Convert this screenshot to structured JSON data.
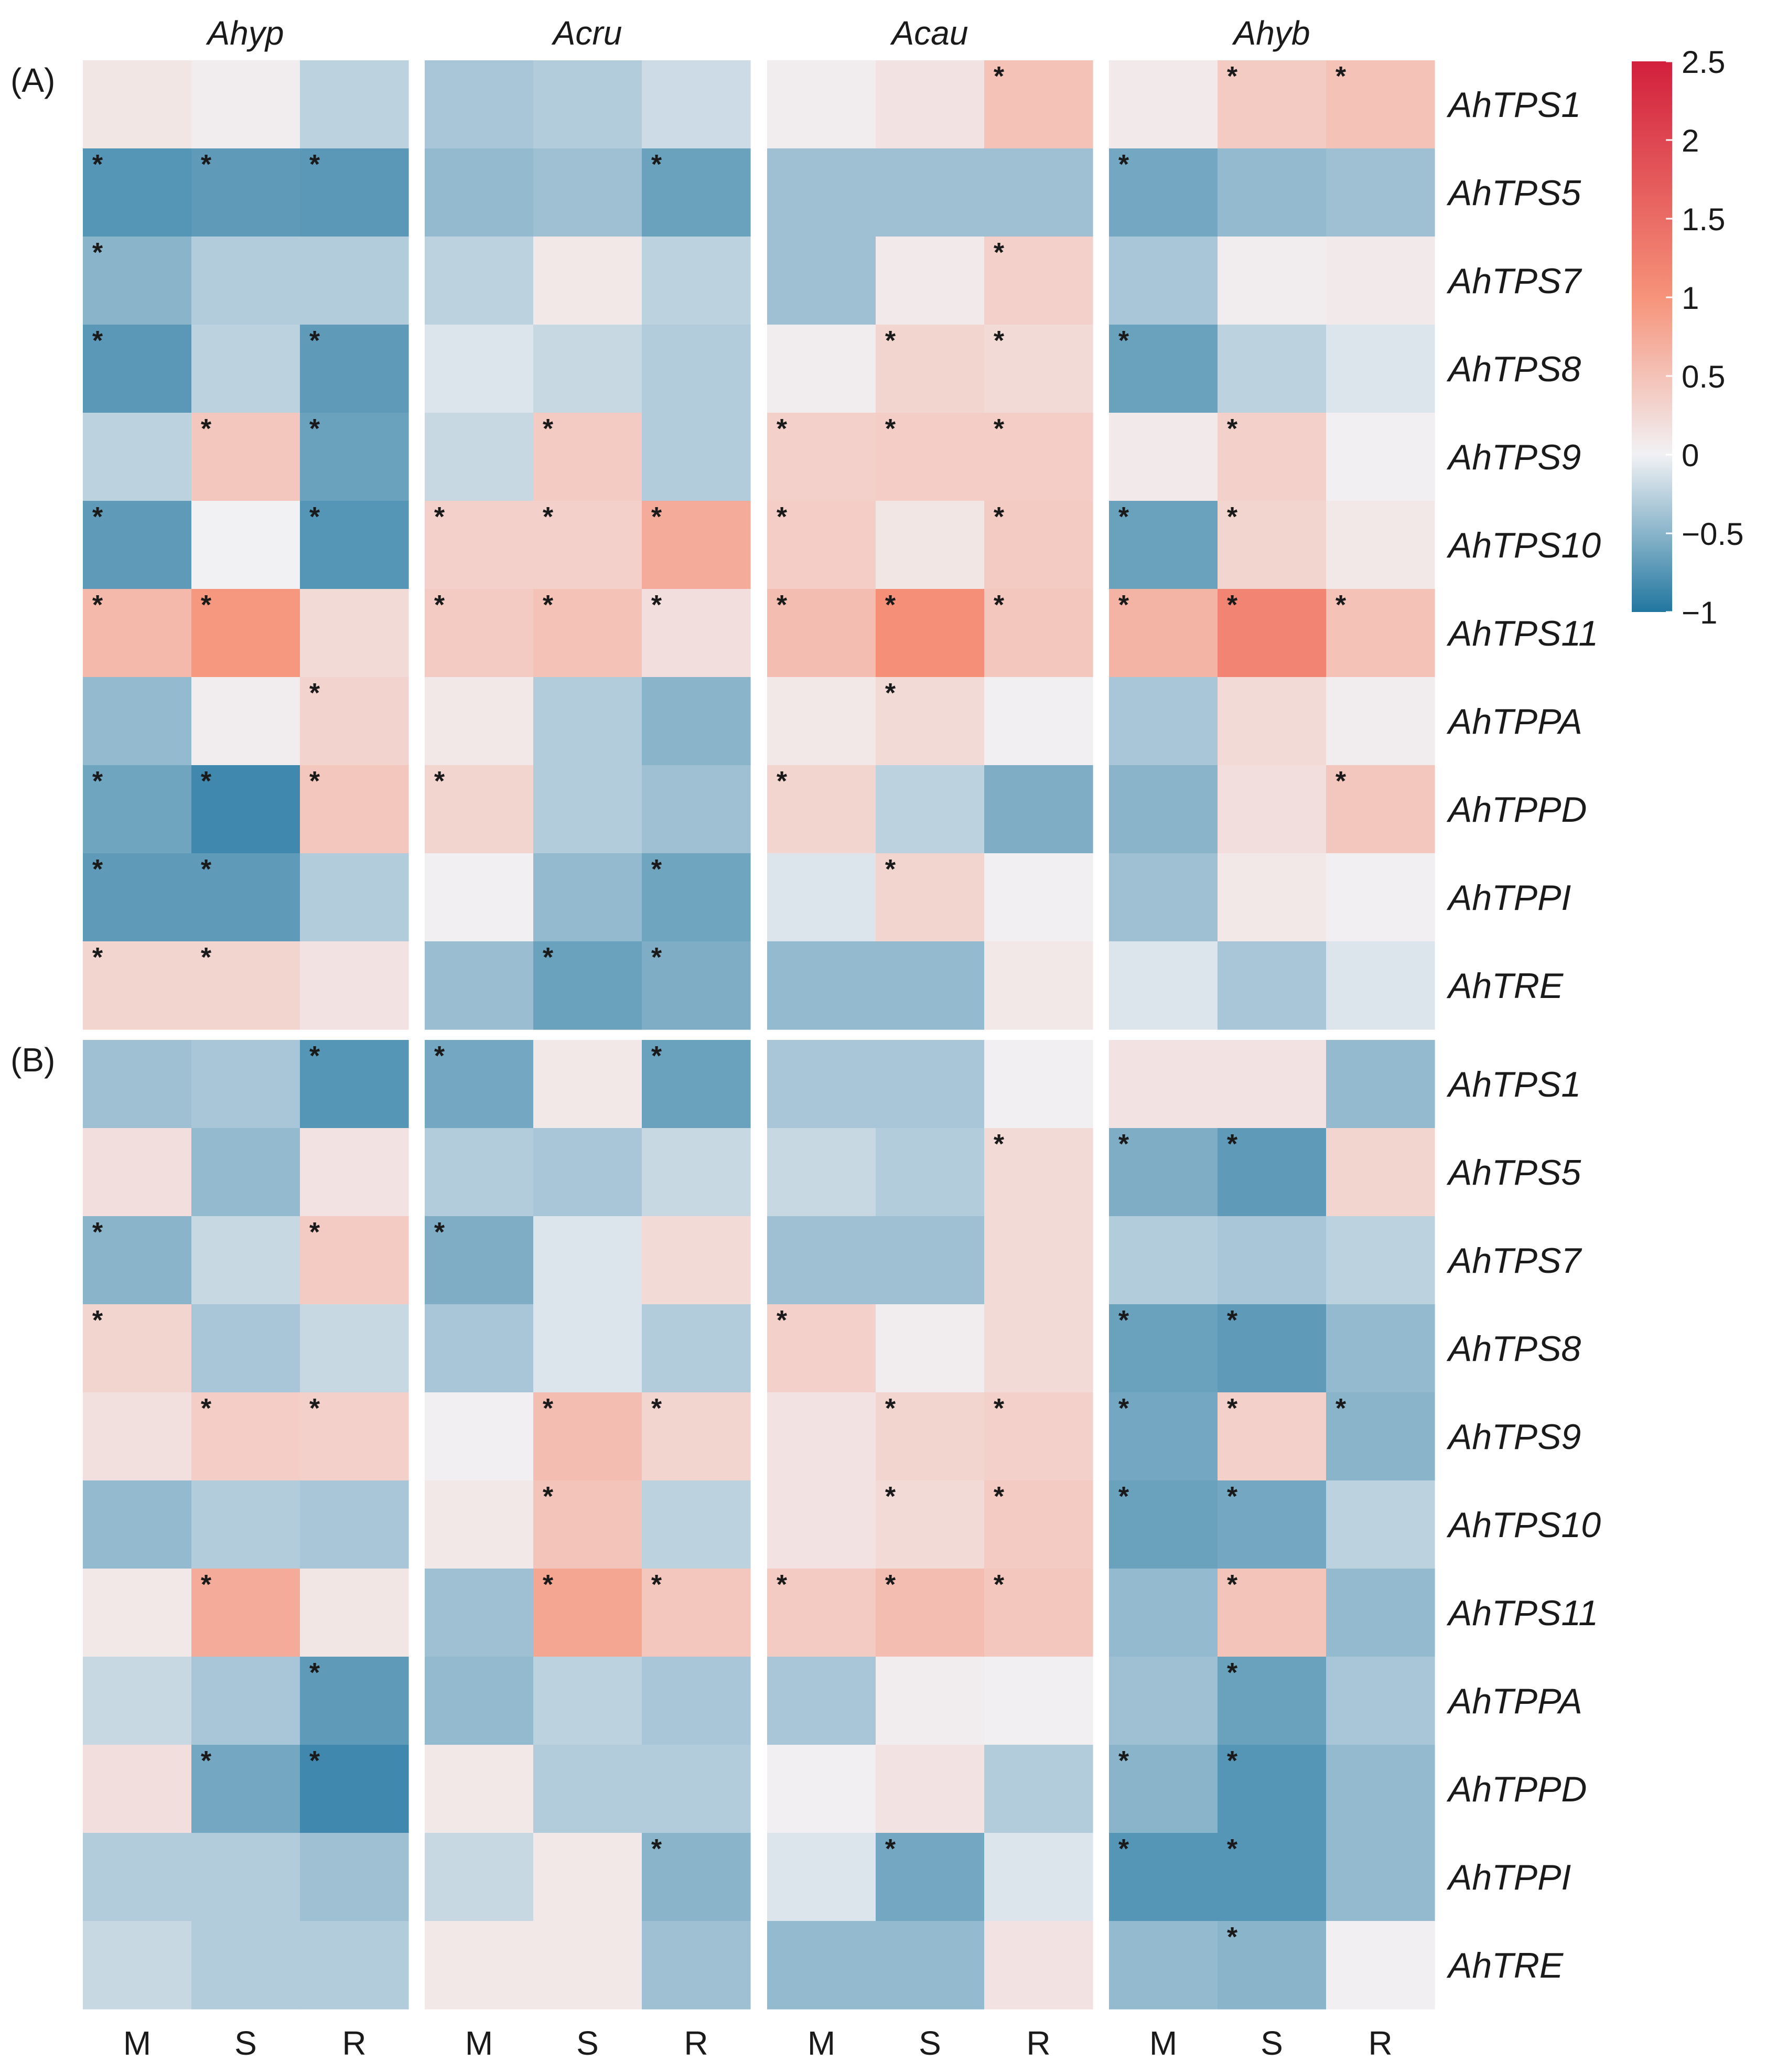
{
  "chart_data": {
    "type": "heatmap",
    "species": [
      "Ahyp",
      "Acru",
      "Acau",
      "Ahyb"
    ],
    "tissues": [
      "M",
      "S",
      "R"
    ],
    "genes": [
      "AhTPS1",
      "AhTPS5",
      "AhTPS7",
      "AhTPS8",
      "AhTPS9",
      "AhTPS10",
      "AhTPS11",
      "AhTPPA",
      "AhTPPD",
      "AhTPPI",
      "AhTRE"
    ],
    "colorbar": {
      "min": -1,
      "max": 2.5,
      "ticks": [
        "2.5",
        "2",
        "1.5",
        "1",
        "0.5",
        "0",
        "−0.5",
        "−1"
      ],
      "tick_values": [
        2.5,
        2,
        1.5,
        1,
        0.5,
        0,
        -0.5,
        -1
      ],
      "colors": {
        "low": "#2176a0",
        "mid": "#f1f1f4",
        "mid_high": "#f6937a",
        "high": "#d21f3c"
      }
    },
    "panels": [
      {
        "label": "(A)",
        "values": [
          [
            [
              0.12,
              0.05,
              -0.25
            ],
            [
              -0.35,
              -0.3,
              -0.18
            ],
            [
              0.05,
              0.15,
              0.5
            ],
            [
              0.08,
              0.4,
              0.5
            ]
          ],
          [
            [
              -0.75,
              -0.7,
              -0.72
            ],
            [
              -0.45,
              -0.4,
              -0.65
            ],
            [
              -0.4,
              -0.4,
              -0.4
            ],
            [
              -0.6,
              -0.45,
              -0.4
            ]
          ],
          [
            [
              -0.5,
              -0.3,
              -0.3
            ],
            [
              -0.25,
              0.1,
              -0.25
            ],
            [
              -0.4,
              0.08,
              0.35
            ],
            [
              -0.35,
              0.05,
              0.08
            ]
          ],
          [
            [
              -0.72,
              -0.25,
              -0.7
            ],
            [
              -0.1,
              -0.2,
              -0.3
            ],
            [
              0.05,
              0.3,
              0.25
            ],
            [
              -0.65,
              -0.25,
              -0.1
            ]
          ],
          [
            [
              -0.25,
              0.45,
              -0.65
            ],
            [
              -0.2,
              0.4,
              -0.3
            ],
            [
              0.35,
              0.38,
              0.38
            ],
            [
              0.08,
              0.35,
              0.02
            ]
          ],
          [
            [
              -0.7,
              0.0,
              -0.75
            ],
            [
              0.35,
              0.35,
              0.75
            ],
            [
              0.38,
              0.12,
              0.4
            ],
            [
              -0.65,
              0.3,
              0.1
            ]
          ],
          [
            [
              0.6,
              0.95,
              0.25
            ],
            [
              0.4,
              0.5,
              0.2
            ],
            [
              0.55,
              1.05,
              0.45
            ],
            [
              0.65,
              1.2,
              0.5
            ]
          ],
          [
            [
              -0.45,
              0.05,
              0.32
            ],
            [
              0.1,
              -0.3,
              -0.5
            ],
            [
              0.1,
              0.25,
              0.02
            ],
            [
              -0.35,
              0.25,
              0.05
            ]
          ],
          [
            [
              -0.62,
              -0.85,
              0.45
            ],
            [
              0.3,
              -0.3,
              -0.4
            ],
            [
              0.3,
              -0.25,
              -0.55
            ],
            [
              -0.5,
              0.2,
              0.45
            ]
          ],
          [
            [
              -0.7,
              -0.7,
              -0.3
            ],
            [
              0.02,
              -0.45,
              -0.62
            ],
            [
              -0.1,
              0.3,
              0.02
            ],
            [
              -0.4,
              0.1,
              0.02
            ]
          ],
          [
            [
              0.3,
              0.3,
              0.15
            ],
            [
              -0.42,
              -0.65,
              -0.55
            ],
            [
              -0.45,
              -0.45,
              0.1
            ],
            [
              -0.1,
              -0.35,
              -0.1
            ]
          ]
        ],
        "significant": [
          [
            [
              0,
              0,
              0
            ],
            [
              0,
              0,
              0
            ],
            [
              0,
              0,
              1
            ],
            [
              0,
              1,
              1
            ]
          ],
          [
            [
              1,
              1,
              1
            ],
            [
              0,
              0,
              1
            ],
            [
              0,
              0,
              0
            ],
            [
              1,
              0,
              0
            ]
          ],
          [
            [
              1,
              0,
              0
            ],
            [
              0,
              0,
              0
            ],
            [
              0,
              0,
              1
            ],
            [
              0,
              0,
              0
            ]
          ],
          [
            [
              1,
              0,
              1
            ],
            [
              0,
              0,
              0
            ],
            [
              0,
              1,
              1
            ],
            [
              1,
              0,
              0
            ]
          ],
          [
            [
              0,
              1,
              1
            ],
            [
              0,
              1,
              0
            ],
            [
              1,
              1,
              1
            ],
            [
              0,
              1,
              0
            ]
          ],
          [
            [
              1,
              0,
              1
            ],
            [
              1,
              1,
              1
            ],
            [
              1,
              0,
              1
            ],
            [
              1,
              1,
              0
            ]
          ],
          [
            [
              1,
              1,
              0
            ],
            [
              1,
              1,
              1
            ],
            [
              1,
              1,
              1
            ],
            [
              1,
              1,
              1
            ]
          ],
          [
            [
              0,
              0,
              1
            ],
            [
              0,
              0,
              0
            ],
            [
              0,
              1,
              0
            ],
            [
              0,
              0,
              0
            ]
          ],
          [
            [
              1,
              1,
              1
            ],
            [
              1,
              0,
              0
            ],
            [
              1,
              0,
              0
            ],
            [
              0,
              0,
              1
            ]
          ],
          [
            [
              1,
              1,
              0
            ],
            [
              0,
              0,
              1
            ],
            [
              0,
              1,
              0
            ],
            [
              0,
              0,
              0
            ]
          ],
          [
            [
              1,
              1,
              0
            ],
            [
              0,
              1,
              1
            ],
            [
              0,
              0,
              0
            ],
            [
              0,
              0,
              0
            ]
          ]
        ]
      },
      {
        "label": "(B)",
        "values": [
          [
            [
              -0.4,
              -0.35,
              -0.75
            ],
            [
              -0.6,
              0.1,
              -0.65
            ],
            [
              -0.35,
              -0.35,
              0.02
            ],
            [
              0.15,
              0.15,
              -0.45
            ]
          ],
          [
            [
              0.2,
              -0.45,
              0.15
            ],
            [
              -0.3,
              -0.35,
              -0.2
            ],
            [
              -0.2,
              -0.3,
              0.25
            ],
            [
              -0.55,
              -0.7,
              0.3
            ]
          ],
          [
            [
              -0.5,
              -0.2,
              0.4
            ],
            [
              -0.55,
              -0.1,
              0.25
            ],
            [
              -0.4,
              -0.4,
              0.25
            ],
            [
              -0.3,
              -0.35,
              -0.25
            ]
          ],
          [
            [
              0.3,
              -0.35,
              -0.2
            ],
            [
              -0.35,
              -0.1,
              -0.3
            ],
            [
              0.35,
              0.05,
              0.25
            ],
            [
              -0.65,
              -0.7,
              -0.45
            ]
          ],
          [
            [
              0.18,
              0.38,
              0.35
            ],
            [
              0.02,
              0.55,
              0.3
            ],
            [
              0.15,
              0.3,
              0.35
            ],
            [
              -0.6,
              0.35,
              -0.5
            ]
          ],
          [
            [
              -0.45,
              -0.3,
              -0.35
            ],
            [
              0.1,
              0.48,
              -0.25
            ],
            [
              0.15,
              0.25,
              0.4
            ],
            [
              -0.65,
              -0.6,
              -0.25
            ]
          ],
          [
            [
              0.1,
              0.75,
              0.12
            ],
            [
              -0.4,
              0.8,
              0.45
            ],
            [
              0.4,
              0.55,
              0.45
            ],
            [
              -0.45,
              0.48,
              -0.45
            ]
          ],
          [
            [
              -0.2,
              -0.35,
              -0.7
            ],
            [
              -0.45,
              -0.25,
              -0.35
            ],
            [
              -0.35,
              0.05,
              0.02
            ],
            [
              -0.4,
              -0.65,
              -0.35
            ]
          ],
          [
            [
              0.2,
              -0.6,
              -0.85
            ],
            [
              0.1,
              -0.3,
              -0.3
            ],
            [
              0.02,
              0.15,
              -0.3
            ],
            [
              -0.5,
              -0.75,
              -0.45
            ]
          ],
          [
            [
              -0.3,
              -0.3,
              -0.4
            ],
            [
              -0.2,
              0.1,
              -0.5
            ],
            [
              -0.1,
              -0.6,
              -0.1
            ],
            [
              -0.75,
              -0.75,
              -0.45
            ]
          ],
          [
            [
              -0.2,
              -0.3,
              -0.3
            ],
            [
              0.1,
              0.1,
              -0.4
            ],
            [
              -0.45,
              -0.45,
              0.15
            ],
            [
              -0.45,
              -0.5,
              0.02
            ]
          ]
        ],
        "significant": [
          [
            [
              0,
              0,
              1
            ],
            [
              1,
              0,
              1
            ],
            [
              0,
              0,
              0
            ],
            [
              0,
              0,
              0
            ]
          ],
          [
            [
              0,
              0,
              0
            ],
            [
              0,
              0,
              0
            ],
            [
              0,
              0,
              1
            ],
            [
              1,
              1,
              0
            ]
          ],
          [
            [
              1,
              0,
              1
            ],
            [
              1,
              0,
              0
            ],
            [
              0,
              0,
              0
            ],
            [
              0,
              0,
              0
            ]
          ],
          [
            [
              1,
              0,
              0
            ],
            [
              0,
              0,
              0
            ],
            [
              1,
              0,
              0
            ],
            [
              1,
              1,
              0
            ]
          ],
          [
            [
              0,
              1,
              1
            ],
            [
              0,
              1,
              1
            ],
            [
              0,
              1,
              1
            ],
            [
              1,
              1,
              1
            ]
          ],
          [
            [
              0,
              0,
              0
            ],
            [
              0,
              1,
              0
            ],
            [
              0,
              1,
              1
            ],
            [
              1,
              1,
              0
            ]
          ],
          [
            [
              0,
              1,
              0
            ],
            [
              0,
              1,
              1
            ],
            [
              1,
              1,
              1
            ],
            [
              0,
              1,
              0
            ]
          ],
          [
            [
              0,
              0,
              1
            ],
            [
              0,
              0,
              0
            ],
            [
              0,
              0,
              0
            ],
            [
              0,
              1,
              0
            ]
          ],
          [
            [
              0,
              1,
              1
            ],
            [
              0,
              0,
              0
            ],
            [
              0,
              0,
              0
            ],
            [
              1,
              1,
              0
            ]
          ],
          [
            [
              0,
              0,
              0
            ],
            [
              0,
              0,
              1
            ],
            [
              0,
              1,
              0
            ],
            [
              1,
              1,
              0
            ]
          ],
          [
            [
              0,
              0,
              0
            ],
            [
              0,
              0,
              0
            ],
            [
              0,
              0,
              0
            ],
            [
              0,
              1,
              0
            ]
          ]
        ]
      }
    ]
  }
}
